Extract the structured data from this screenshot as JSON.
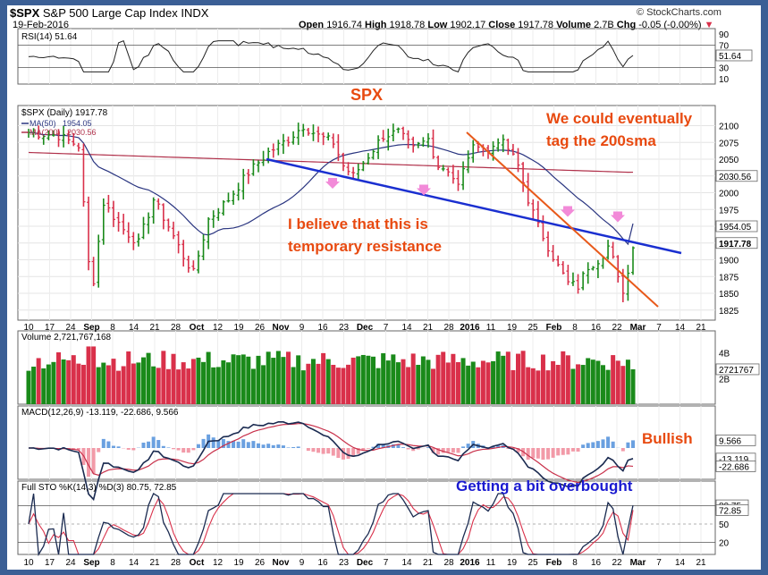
{
  "header": {
    "symbol": "$SPX",
    "name": "S&P 500 Large Cap Index",
    "exchange": "INDX",
    "date": "19-Feb-2016",
    "open_label": "Open",
    "open": "1916.74",
    "high_label": "High",
    "high": "1918.78",
    "low_label": "Low",
    "low": "1902.17",
    "close_label": "Close",
    "close": "1917.78",
    "volume_label": "Volume",
    "volume": "2.7B",
    "chg_label": "Chg",
    "chg": "-0.05 (-0.00%)",
    "brand": "© StockCharts.com",
    "chg_arrow": "▼"
  },
  "annotations": {
    "title": "SPX",
    "note1_line1": "We could eventually",
    "note1_line2": "tag the 200sma",
    "note2_line1": "I believe that this is",
    "note2_line2": "temporary resistance",
    "macd_note": "Bullish",
    "sto_note": "Getting a bit overbought"
  },
  "colors": {
    "background_frame": "#3b5f95",
    "up_bar": "#1a8a1a",
    "down_bar": "#d9304a",
    "ma50": "#2a3580",
    "ma200": "#b0304a",
    "trendline": "#1a2fd0",
    "channel_line": "#e8591a",
    "annotation_red": "#e84a10",
    "annotation_blue": "#1a1ad0",
    "marker": "#f28ad8"
  },
  "chart_data": [
    {
      "panel": "rsi",
      "type": "line",
      "title": "RSI(14) 51.64",
      "ylim": [
        0,
        100
      ],
      "y_ticks": [
        "90",
        "70",
        "51.64",
        "30",
        "10"
      ],
      "overbought": 70,
      "oversold": 30,
      "last_value": 51.64
    },
    {
      "panel": "price",
      "type": "ohlc",
      "title": "$SPX (Daily) 1917.78",
      "legend": [
        {
          "name": "MA(50)",
          "value": "1954.05"
        },
        {
          "name": "MA(200)",
          "value": "2030.56"
        }
      ],
      "ylim": [
        1810,
        2130
      ],
      "y_ticks": [
        2100,
        2075,
        2050,
        2025,
        2000,
        1975,
        1950,
        1925,
        1900,
        1875,
        1850,
        1825
      ],
      "y_tick_labels": [
        "2100",
        "2075",
        "2050",
        "2030.56",
        "2000",
        "1975",
        "1954.05",
        "1917.78",
        "1900",
        "1875",
        "1850",
        "1825"
      ],
      "x_ticks": [
        "10",
        "17",
        "24",
        "Sep",
        "8",
        "14",
        "21",
        "28",
        "Oct",
        "12",
        "19",
        "26",
        "Nov",
        "9",
        "16",
        "23",
        "Dec",
        "7",
        "14",
        "21",
        "28",
        "2016",
        "11",
        "19",
        "25",
        "Feb",
        "8",
        "16",
        "22",
        "Mar",
        "7",
        "14",
        "21"
      ],
      "last_close": 1917.78,
      "ma50_last": 1954.05,
      "ma200_last": 2030.56,
      "ohlc_last": {
        "open": 1916.74,
        "high": 1918.78,
        "low": 1902.17,
        "close": 1917.78
      }
    },
    {
      "panel": "volume",
      "type": "bar",
      "title": "Volume 2,721,767,168",
      "y_ticks": [
        "4B",
        "2721767",
        "2B"
      ],
      "last_value": 2721767168
    },
    {
      "panel": "macd",
      "type": "line",
      "title": "MACD(12,26,9) -13.119, -22.686, 9.566",
      "series": [
        {
          "name": "MACD",
          "last": -13.119
        },
        {
          "name": "Signal",
          "last": -22.686
        },
        {
          "name": "Histogram",
          "last": 9.566
        }
      ],
      "y_ticks": [
        "9.566",
        "-13.119",
        "-22.686"
      ]
    },
    {
      "panel": "stochastic",
      "type": "line",
      "title": "Full STO %K(14,3) %D(3) 80.75, 72.85",
      "series": [
        {
          "name": "%K",
          "last": 80.75
        },
        {
          "name": "%D",
          "last": 72.85
        }
      ],
      "ylim": [
        0,
        100
      ],
      "y_ticks": [
        "80.75",
        "72.85",
        "50",
        "20"
      ]
    }
  ]
}
